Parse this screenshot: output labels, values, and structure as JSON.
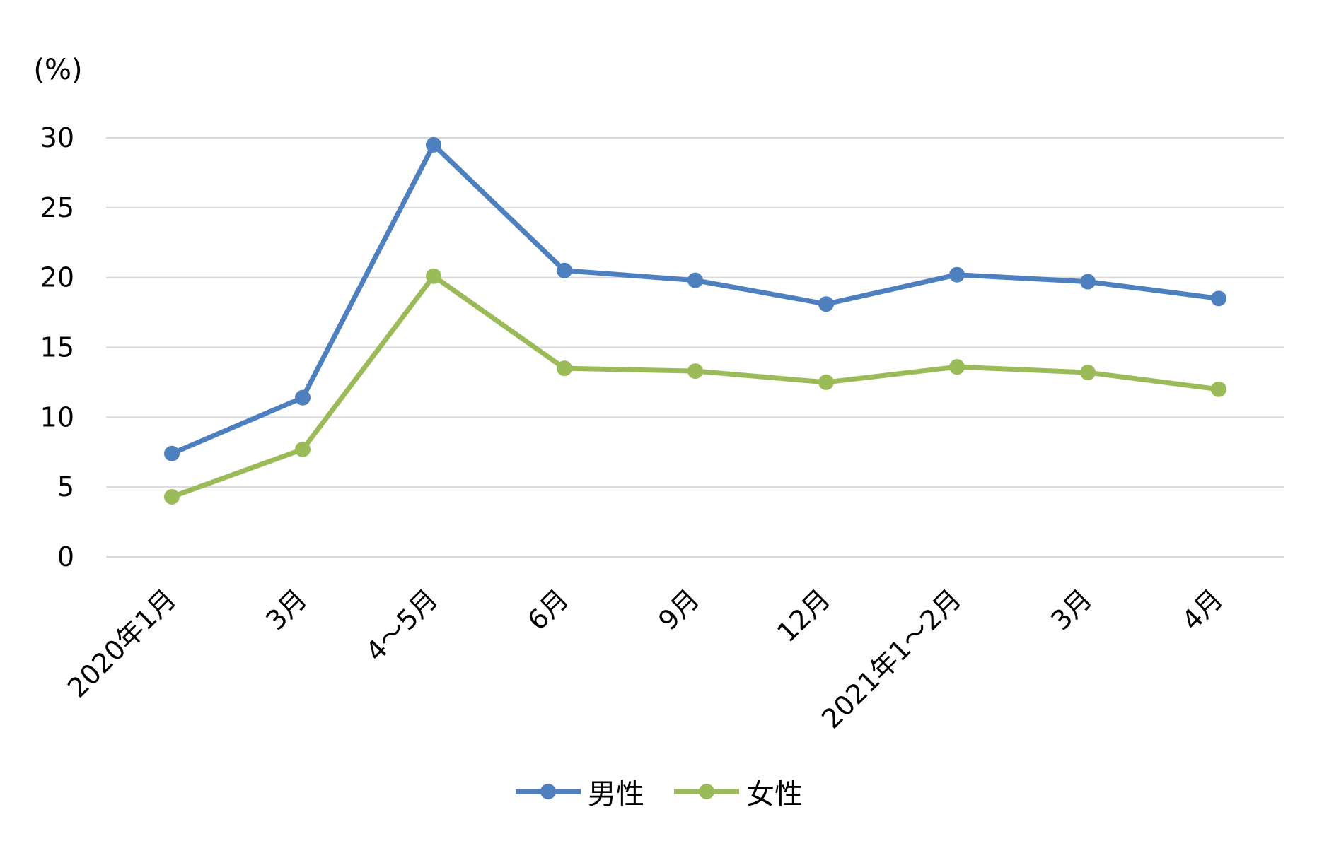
{
  "chart_data": {
    "type": "line",
    "ylabel": "(%)",
    "ylim": [
      0,
      30
    ],
    "yticks": [
      0,
      5,
      10,
      15,
      20,
      25,
      30
    ],
    "grid": true,
    "legend_position": "bottom-center",
    "categories": [
      "2020年1月",
      "3月",
      "4～5月",
      "6月",
      "9月",
      "12月",
      "2021年1～2月",
      "3月",
      "4月"
    ],
    "series": [
      {
        "name": "男性",
        "color": "#4E7FBF",
        "values": [
          7.4,
          11.4,
          29.5,
          20.5,
          19.8,
          18.1,
          20.2,
          19.7,
          18.5
        ]
      },
      {
        "name": "女性",
        "color": "#9BBB59",
        "values": [
          4.3,
          7.7,
          20.1,
          13.5,
          13.3,
          12.5,
          13.6,
          13.2,
          12.0
        ]
      }
    ]
  }
}
